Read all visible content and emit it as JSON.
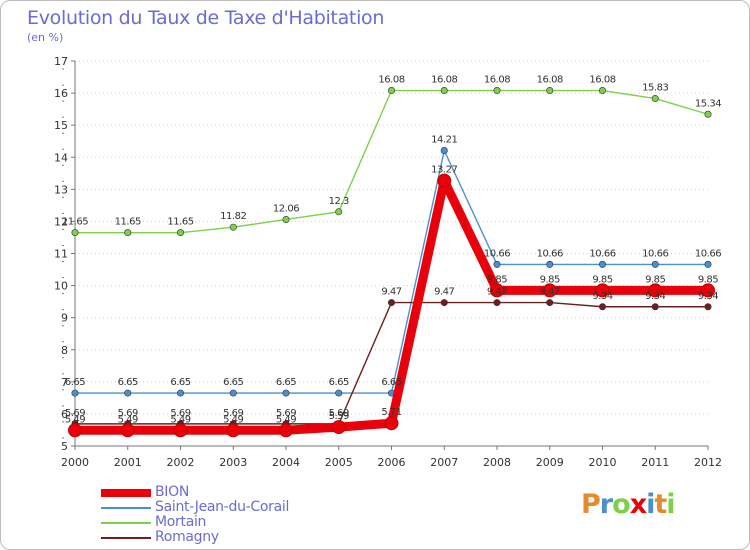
{
  "chart_data": {
    "type": "line",
    "title": "Evolution du Taux de Taxe d'Habitation",
    "subtitle": "(en %)",
    "xlabel": "",
    "ylabel": "",
    "categories": [
      "2000",
      "2001",
      "2002",
      "2003",
      "2004",
      "2005",
      "2006",
      "2007",
      "2008",
      "2009",
      "2010",
      "2011",
      "2012"
    ],
    "ylim": [
      5,
      17
    ],
    "yticks": [
      5,
      6,
      7,
      8,
      9,
      10,
      11,
      12,
      13,
      14,
      15,
      16,
      17
    ],
    "grid": "horizontal dotted",
    "legend_position": "bottom-left",
    "series": [
      {
        "name": "BION",
        "color": "#e8000b",
        "values": [
          5.49,
          5.49,
          5.49,
          5.49,
          5.49,
          5.59,
          5.71,
          13.27,
          9.85,
          9.85,
          9.85,
          9.85,
          9.85
        ],
        "labels": [
          "5.49",
          "5.49",
          "5.49",
          "5.49",
          "5.49",
          "5.59",
          "5.71",
          "13.27",
          "9.85",
          "9.85",
          "9.85",
          "9.85",
          "9.85"
        ]
      },
      {
        "name": "Saint-Jean-du-Corail",
        "color": "#4a90d0",
        "values": [
          6.65,
          6.65,
          6.65,
          6.65,
          6.65,
          6.65,
          6.65,
          14.21,
          10.66,
          10.66,
          10.66,
          10.66,
          10.66
        ],
        "labels": [
          "6.65",
          "6.65",
          "6.65",
          "6.65",
          "6.65",
          "6.65",
          "6.65",
          "14.21",
          "10.66",
          "10.66",
          "10.66",
          "10.66",
          "10.66"
        ]
      },
      {
        "name": "Mortain",
        "color": "#7ed04c",
        "values": [
          11.65,
          11.65,
          11.65,
          11.82,
          12.06,
          12.3,
          16.08,
          16.08,
          16.08,
          16.08,
          16.08,
          15.83,
          15.34
        ],
        "labels": [
          "11.65",
          "11.65",
          "11.65",
          "11.82",
          "12.06",
          "12.3",
          "16.08",
          "16.08",
          "16.08",
          "16.08",
          "16.08",
          "15.83",
          "15.34"
        ]
      },
      {
        "name": "Romagny",
        "color": "#6b2020",
        "values": [
          5.69,
          5.69,
          5.69,
          5.69,
          5.69,
          5.69,
          9.47,
          9.47,
          9.47,
          9.47,
          9.34,
          9.34,
          9.34
        ],
        "labels": [
          "5.69",
          "5.69",
          "5.69",
          "5.69",
          "5.69",
          "5.69",
          "9.47",
          "9.47",
          "9.47",
          "9.47",
          "9.34",
          "9.34",
          "9.34"
        ]
      }
    ]
  },
  "legend": {
    "items": [
      "BION",
      "Saint-Jean-du-Corail",
      "Mortain",
      "Romagny"
    ]
  },
  "logo": {
    "text": "Proxiti",
    "letters": [
      "P",
      "r",
      "o",
      "x",
      "i",
      "t",
      "i"
    ],
    "letter_colors": [
      "#e58a2e",
      "#4a90d0",
      "#7ed04c",
      "#e8000b",
      "#4a90d0",
      "#e58a2e",
      "#7ed04c"
    ]
  }
}
